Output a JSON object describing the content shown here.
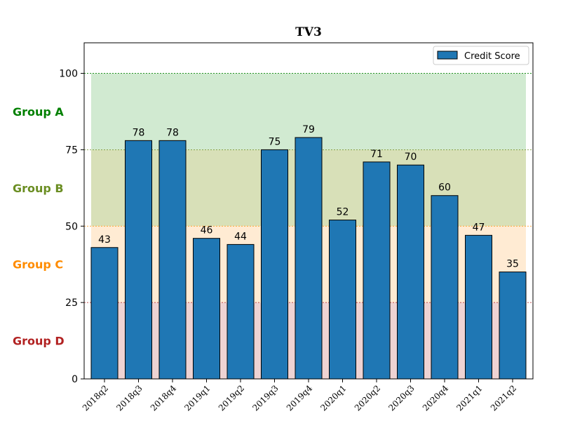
{
  "chart_data": {
    "type": "bar",
    "title": "TV3",
    "title_color": "#2F4F4F",
    "xlabel": "",
    "ylabel": "",
    "categories": [
      "2018q2",
      "2018q3",
      "2018q4",
      "2019q1",
      "2019q2",
      "2019q3",
      "2019q4",
      "2020q1",
      "2020q2",
      "2020q3",
      "2020q4",
      "2021q1",
      "2021q2"
    ],
    "series": [
      {
        "name": "Credit Score",
        "color": "#1F77B4",
        "values": [
          43,
          78,
          78,
          46,
          44,
          75,
          79,
          52,
          71,
          70,
          60,
          47,
          35
        ]
      }
    ],
    "ylim": [
      0,
      110
    ],
    "yticks": [
      0,
      25,
      50,
      75,
      100
    ],
    "grid": false,
    "legend_position": "top-right",
    "bands": [
      {
        "label": "Group A",
        "from": 75,
        "to": 100,
        "fill": "#2CA02C",
        "label_color": "#008000",
        "line_color": "#008000"
      },
      {
        "label": "Group B",
        "from": 50,
        "to": 75,
        "fill": "#CBD5A0",
        "label_color": "#6B8E23",
        "line_color": "#6B8E23"
      },
      {
        "label": "Group C",
        "from": 25,
        "to": 50,
        "fill": "#FFE4C4",
        "label_color": "#FF8C00",
        "line_color": "#FF8C00"
      },
      {
        "label": "Group D",
        "from": 0,
        "to": 25,
        "fill": "#E8C4C4",
        "label_color": "#B22222",
        "line_color": "#B22222"
      }
    ]
  }
}
